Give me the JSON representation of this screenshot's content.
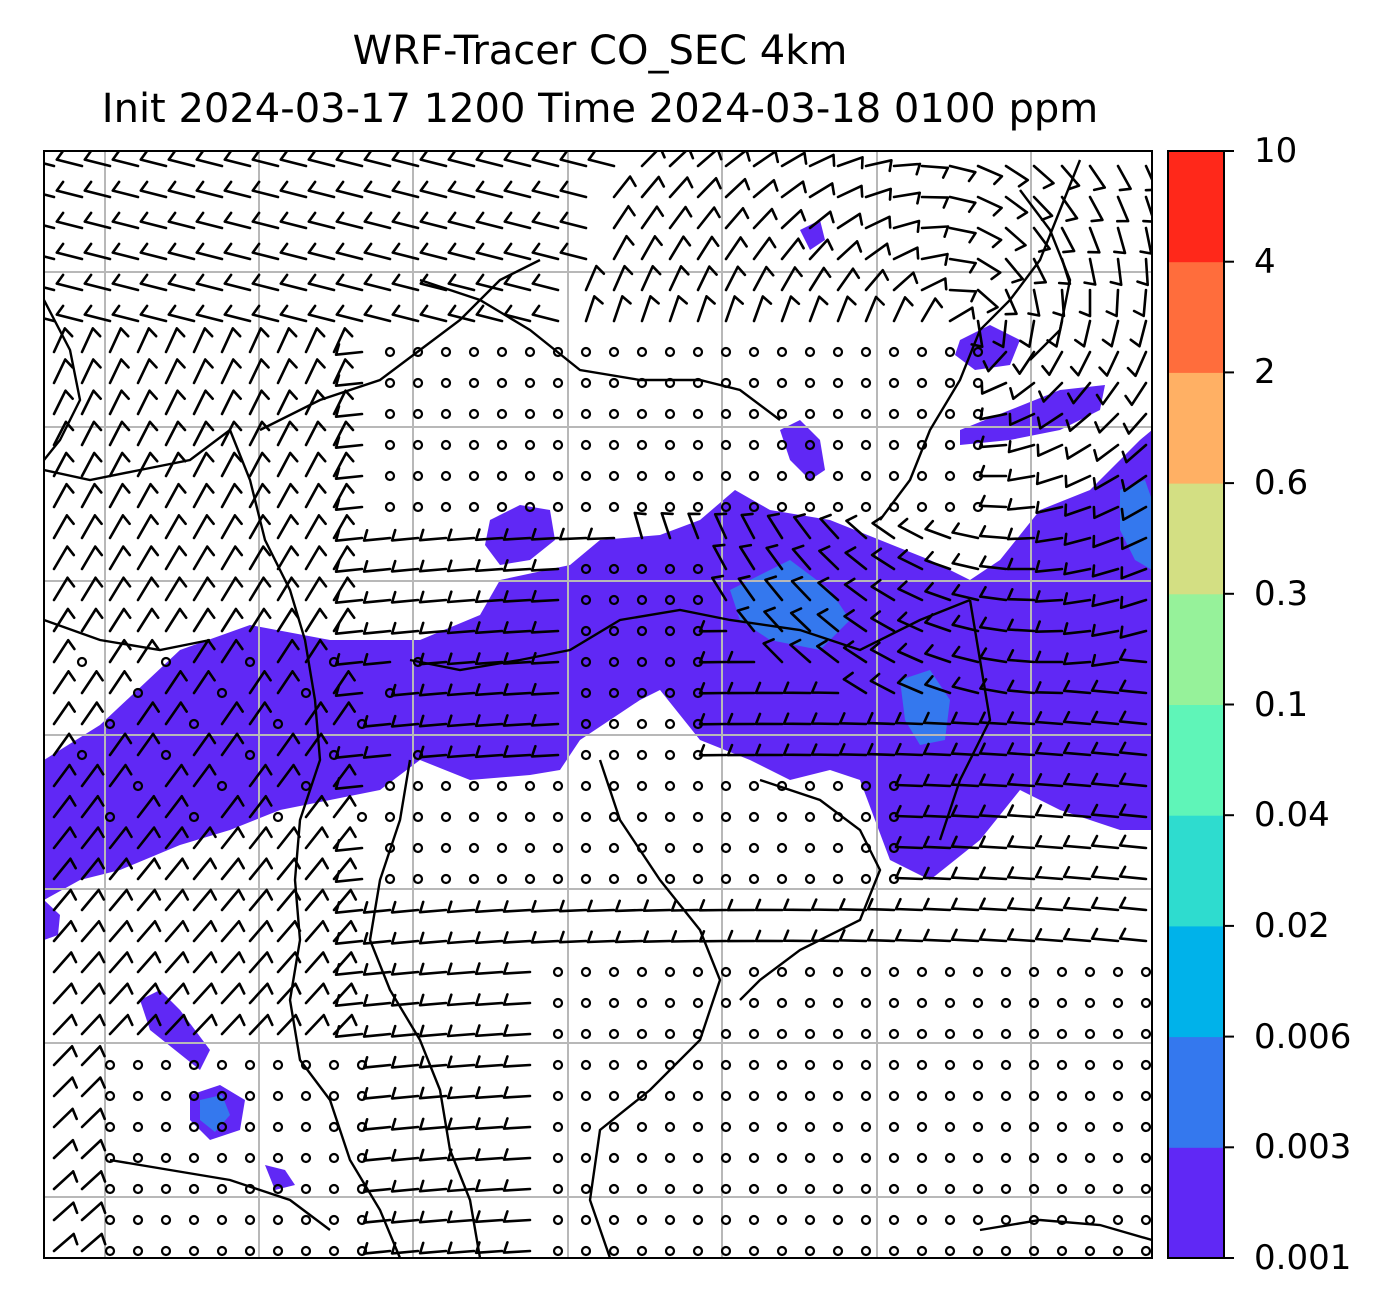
{
  "title": {
    "line1": "WRF-Tracer CO_SEC 4km",
    "line2": "Init 2024-03-17 1200 Time 2024-03-18 0100 ppm"
  },
  "colorbar": {
    "unit": "ppm",
    "levels": [
      "0.001",
      "0.003",
      "0.006",
      "0.02",
      "0.04",
      "0.1",
      "0.3",
      "0.6",
      "2",
      "4",
      "10"
    ],
    "bin_colors": [
      "#6028f5",
      "#3478ee",
      "#00b2ea",
      "#2edccf",
      "#5ff5b8",
      "#96f29a",
      "#d3df83",
      "#ffb064",
      "#ff6d3c",
      "#ff281a"
    ]
  },
  "map": {
    "plume_colors": {
      "low": "#6028f5",
      "mid": "#3478ee"
    },
    "gridline_color": "#b8b8b8",
    "wind_barbs": "black",
    "calm_marker": "open-circle"
  }
}
